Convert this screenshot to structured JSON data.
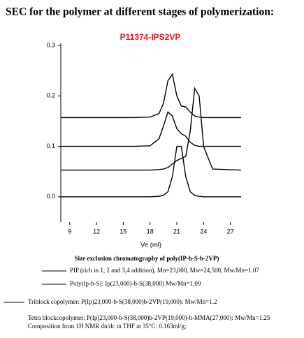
{
  "heading": "SEC for the polymer at different stages of polymerization:",
  "chart_data": {
    "type": "line",
    "title": "P11374-IPS2VP",
    "x_label": "Ve (ml)",
    "xlim": [
      8,
      28.2
    ],
    "ylim": [
      -0.05,
      0.3
    ],
    "xticks": [
      9,
      12,
      15,
      18,
      21,
      24,
      27
    ],
    "yticks": [
      {
        "value": 0,
        "label": "0.0"
      },
      0.1,
      0.2,
      0.3
    ],
    "x": [
      8,
      16,
      18,
      19,
      19.5,
      20,
      20.5,
      21,
      21.5,
      22,
      22.5,
      23,
      23.5,
      24,
      25,
      28.2
    ],
    "series": [
      {
        "name": "PIP (rich in 1, 2 and 3,4  addition), Mn=23,000, Mw=24,500, Mw/Mn=1.07",
        "color": "#000000",
        "values": [
          0.053,
          0.053,
          0.053,
          0.054,
          0.055,
          0.058,
          0.065,
          0.072,
          0.076,
          0.08,
          0.13,
          0.215,
          0.2,
          0.1,
          0.055,
          0.053
        ]
      },
      {
        "name": "Poly(Ip-b-S): Ip(23,000)-b-S(38,000) Mw/Mn=1.09",
        "color": "#000000",
        "values": [
          0,
          0,
          0,
          0.001,
          0.003,
          0.01,
          0.04,
          0.1,
          0.1,
          0.04,
          0.01,
          0.003,
          0.001,
          0,
          0,
          0
        ]
      },
      {
        "name": "Triblock copolymer: P(Ip)23,000-b-S(38,000)b-2VP(19,000): Mw/Mn=1.2",
        "color": "#000000",
        "values": [
          0.1,
          0.1,
          0.101,
          0.115,
          0.14,
          0.168,
          0.16,
          0.135,
          0.125,
          0.12,
          0.108,
          0.102,
          0.1,
          0.1,
          0.1,
          0.1
        ]
      },
      {
        "color": "#000000",
        "values": [
          0.157,
          0.157,
          0.158,
          0.165,
          0.185,
          0.23,
          0.243,
          0.2,
          0.18,
          0.178,
          0.168,
          0.16,
          0.158,
          0.157,
          0.157,
          0.157
        ]
      }
    ]
  },
  "caption": "Size exclusion chromatography of poly(IP-b-S-b-2VP)",
  "notes": [
    "Tetra blockcopolymer: P(Ip)23,000-b-S(38,000)b-2VP(19,000)-b-MMA(27,000): Mw/Mn=1.25",
    "Composition from 1H NMR dn/dc in THF at 35°C: 0.163ml/g;"
  ]
}
